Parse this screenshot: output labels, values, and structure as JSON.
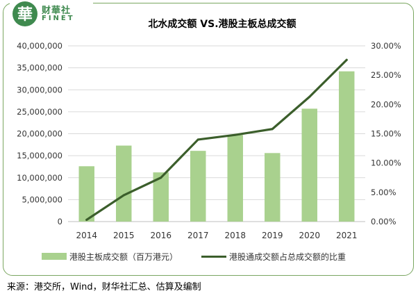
{
  "brand": {
    "name_cn": "财華社",
    "name_en": "FINET",
    "seal_char": "華",
    "color": "#3f8a4f"
  },
  "chart_data": {
    "type": "bar",
    "title": "北水成交额 VS.港股主板总成交额",
    "categories": [
      "2014",
      "2015",
      "2016",
      "2017",
      "2018",
      "2019",
      "2020",
      "2021"
    ],
    "series": [
      {
        "name": "港股主板成交额（百万港元）",
        "type": "bar",
        "axis": "left",
        "color": "#a9d18e",
        "values": [
          12600000,
          17300000,
          11200000,
          16100000,
          19700000,
          15600000,
          25700000,
          34200000
        ]
      },
      {
        "name": "港股通成交额占总成交额的比重",
        "type": "line",
        "axis": "right",
        "color": "#3b5e2b",
        "values": [
          0.003,
          0.045,
          0.075,
          0.14,
          0.148,
          0.158,
          0.213,
          0.276
        ]
      }
    ],
    "y_left": {
      "ticks": [
        "0",
        "5,000,000",
        "10,000,000",
        "15,000,000",
        "20,000,000",
        "25,000,000",
        "30,000,000",
        "35,000,000",
        "40,000,000"
      ],
      "min": 0,
      "max": 40000000
    },
    "y_right": {
      "ticks": [
        "0.00%",
        "5.00%",
        "10.00%",
        "15.00%",
        "20.00%",
        "25.00%",
        "30.00%"
      ],
      "min": 0,
      "max": 0.3
    },
    "grid": true,
    "legend_position": "bottom"
  },
  "source_text": "来源：港交所，Wind，财华社汇总、估算及编制"
}
